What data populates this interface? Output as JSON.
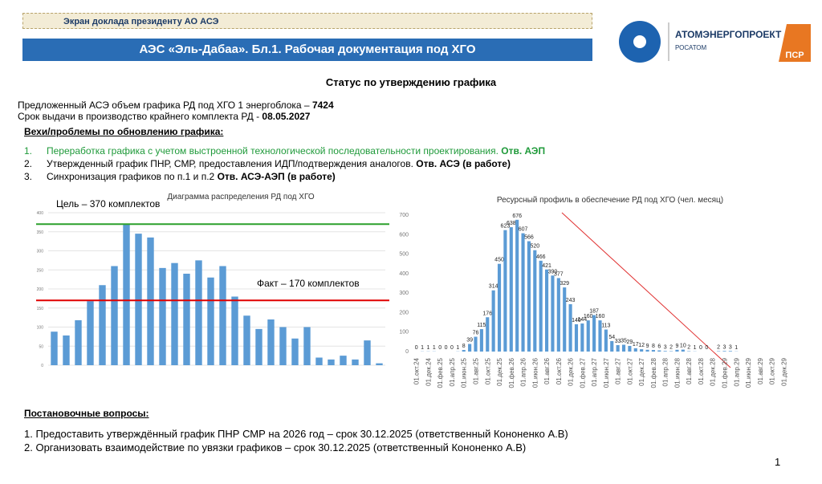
{
  "header": {
    "badge": "Экран доклада президенту АО АСЭ",
    "title": "АЭС «Эль-Дабаа». Бл.1. Рабочая документация под ХГО"
  },
  "logo": {
    "name": "АТОМЭНЕРГОПРОЕКТ",
    "sub": "РОСАТОМ",
    "mark": "ПСР"
  },
  "status": {
    "title": "Статус по утверждению графика",
    "lines": [
      {
        "text": "Предложенный АСЭ объем графика РД под ХГО 1 энергоблока – ",
        "bold": "7424"
      },
      {
        "text": "Срок выдачи в производство крайнего комплекта РД - ",
        "bold": "08.05.2027"
      }
    ]
  },
  "milestones": {
    "title": "Вехи/проблемы по обновлению графика:",
    "items": [
      {
        "num": "1.",
        "text": "Переработка графика с учетом выстроенной технологической последовательности проектирования. ",
        "bold": "Отв. АЭП"
      },
      {
        "num": "2.",
        "text": "Утвержденный график ПНР, СМР, предоставления ИДП/подтверждения аналогов. ",
        "bold": "Отв. АСЭ  (в работе)"
      },
      {
        "num": "3.",
        "text": "Синхронизация графиков по п.1 и п.2 ",
        "bold": "Отв. АСЭ-АЭП (в работе)"
      }
    ]
  },
  "questions": {
    "title": "Постановочные вопросы:",
    "items": [
      "1. Предоставить утверждённый график ПНР СМР на 2026 год – срок 30.12.2025 (ответственный Кононенко А.В)",
      "2. Организовать взаимодействие по увязки графиков – срок 30.12.2025 (ответственный Кононенко А.В)"
    ]
  },
  "page_number": "1",
  "chart_data": [
    {
      "type": "bar",
      "title": "Диаграмма распределения РД под ХГО",
      "color": "#5b9bd5",
      "grid": true,
      "categories": [
        null,
        null,
        null,
        null,
        null,
        null,
        null,
        null,
        null,
        null,
        null,
        null,
        null,
        null,
        null,
        null,
        null,
        null,
        null,
        null,
        null,
        null,
        null,
        null,
        null,
        null,
        null,
        null
      ],
      "values": [
        88,
        78,
        118,
        168,
        210,
        260,
        370,
        345,
        335,
        255,
        268,
        240,
        275,
        230,
        260,
        180,
        130,
        95,
        120,
        100,
        70,
        100,
        20,
        15,
        25,
        15,
        65,
        5
      ],
      "ylim": [
        0,
        400
      ],
      "yticks": [
        0,
        50,
        100,
        150,
        200,
        250,
        300,
        350,
        400
      ],
      "reference_lines": [
        {
          "label": "Цель – 370 комплектов",
          "value": 370,
          "color": "#2ca02c"
        },
        {
          "label": "Факт – 170 комплектов",
          "value": 170,
          "color": "#e00000"
        }
      ]
    },
    {
      "type": "bar",
      "title": "Ресурсный профиль в обеспечение РД под ХГО (чел. месяц)",
      "color": "#5b9bd5",
      "grid": false,
      "categories": [
        "01.окт.24",
        null,
        "01.дек.24",
        null,
        "01.фев.25",
        null,
        "01.апр.25",
        null,
        "01.июн.25",
        null,
        "01.авг.25",
        null,
        "01.окт.25",
        null,
        "01.дек.25",
        null,
        "01.фев.26",
        null,
        "01.апр.26",
        null,
        "01.июн.26",
        null,
        "01.авг.26",
        null,
        "01.окт.26",
        null,
        "01.дек.26",
        null,
        "01.фев.27",
        null,
        "01.апр.27",
        null,
        "01.июн.27",
        null,
        "01.авг.27",
        null,
        "01.окт.27",
        null,
        "01.дек.27",
        null,
        "01.фев.28",
        null,
        "01.апр.28",
        null,
        "01.июн.28",
        null,
        "01.авг.28",
        null,
        "01.окт.28",
        null,
        "01.дек.28",
        null,
        "01.фев.29",
        null,
        "01.апр.29",
        null,
        "01.июн.29",
        null,
        "01.авг.29",
        null,
        "01.окт.29",
        null,
        "01.дек.29"
      ],
      "values": [
        0,
        1,
        1,
        1,
        0,
        0,
        0,
        1,
        8,
        39,
        76,
        115,
        176,
        314,
        450,
        623,
        638,
        676,
        607,
        566,
        520,
        466,
        421,
        390,
        377,
        329,
        243,
        140,
        144,
        160,
        187,
        160,
        113,
        54,
        33,
        35,
        29,
        17,
        12,
        9,
        8,
        6,
        3,
        2,
        9,
        10,
        2,
        1,
        0,
        0,
        null,
        2,
        3,
        3,
        1,
        null,
        null,
        null,
        null,
        null,
        null,
        null,
        null
      ],
      "ylim": [
        0,
        700
      ],
      "yticks": [
        0,
        100,
        200,
        300,
        400,
        500,
        600,
        700
      ]
    }
  ]
}
